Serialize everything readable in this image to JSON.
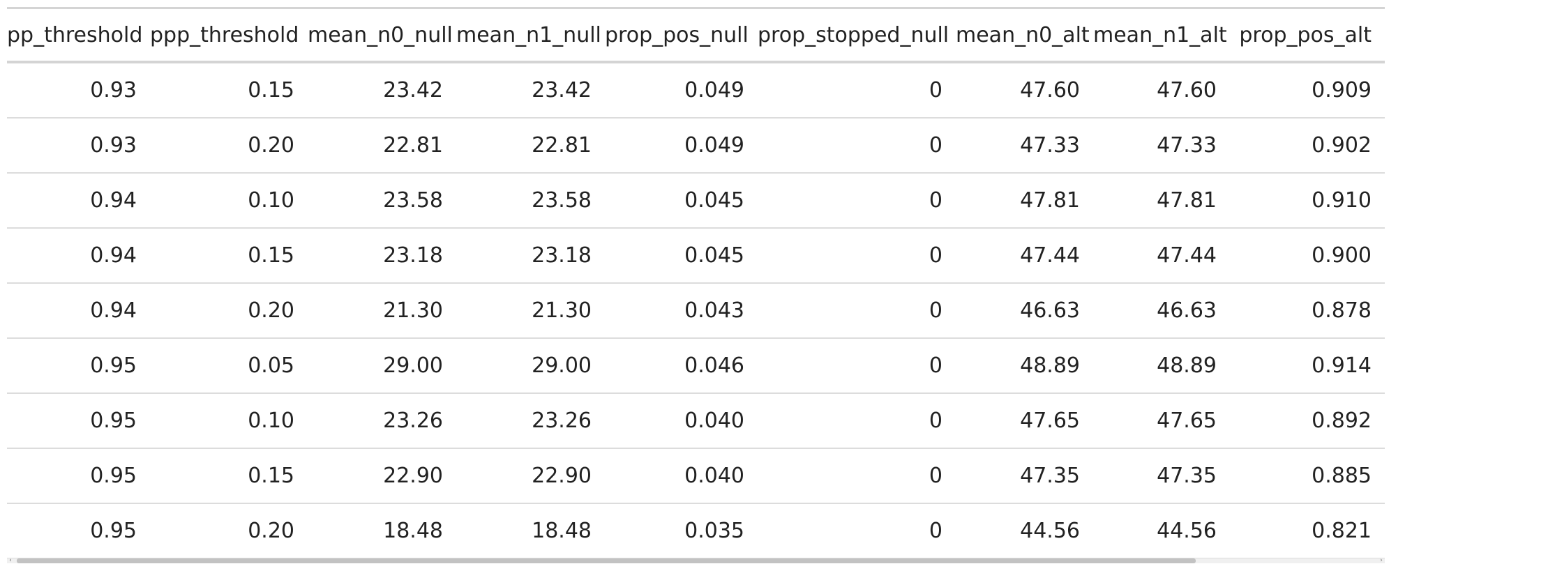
{
  "table": {
    "columns": [
      "pp_threshold",
      "ppp_threshold",
      "mean_n0_null",
      "mean_n1_null",
      "prop_pos_null",
      "prop_stopped_null",
      "mean_n0_alt",
      "mean_n1_alt",
      "prop_pos_alt"
    ],
    "rows": [
      [
        "0.93",
        "0.15",
        "23.42",
        "23.42",
        "0.049",
        "0",
        "47.60",
        "47.60",
        "0.909"
      ],
      [
        "0.93",
        "0.20",
        "22.81",
        "22.81",
        "0.049",
        "0",
        "47.33",
        "47.33",
        "0.902"
      ],
      [
        "0.94",
        "0.10",
        "23.58",
        "23.58",
        "0.045",
        "0",
        "47.81",
        "47.81",
        "0.910"
      ],
      [
        "0.94",
        "0.15",
        "23.18",
        "23.18",
        "0.045",
        "0",
        "47.44",
        "47.44",
        "0.900"
      ],
      [
        "0.94",
        "0.20",
        "21.30",
        "21.30",
        "0.043",
        "0",
        "46.63",
        "46.63",
        "0.878"
      ],
      [
        "0.95",
        "0.05",
        "29.00",
        "29.00",
        "0.046",
        "0",
        "48.89",
        "48.89",
        "0.914"
      ],
      [
        "0.95",
        "0.10",
        "23.26",
        "23.26",
        "0.040",
        "0",
        "47.65",
        "47.65",
        "0.892"
      ],
      [
        "0.95",
        "0.15",
        "22.90",
        "22.90",
        "0.040",
        "0",
        "47.35",
        "47.35",
        "0.885"
      ],
      [
        "0.95",
        "0.20",
        "18.48",
        "18.48",
        "0.035",
        "0",
        "44.56",
        "44.56",
        "0.821"
      ]
    ]
  },
  "scrollbar": {
    "left_arrow": "‹",
    "right_arrow": "›"
  },
  "colors": {
    "text": "#222222",
    "rule": "#d4d4d4",
    "row_rule": "#dcdcdc",
    "scroll_thumb": "#c2c2c2"
  }
}
